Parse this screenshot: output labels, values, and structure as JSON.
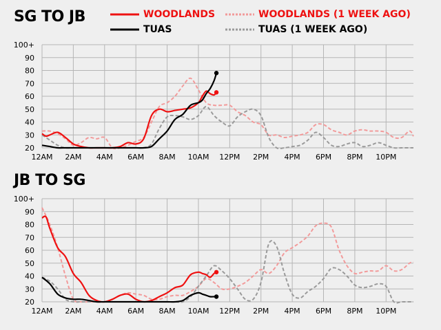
{
  "colors": {
    "woodlands": "#ee1111",
    "woodlands_week_ago": "#f29a9a",
    "tuas": "#000000",
    "tuas_week_ago": "#9a9a9a",
    "grid": "#b5b5b5",
    "background": "#efefef"
  },
  "legend": [
    {
      "label": "WOODLANDS",
      "style": "solid",
      "color": "#ee1111"
    },
    {
      "label": "WOODLANDS (1 WEEK AGO)",
      "style": "dashed",
      "color": "#f29a9a"
    },
    {
      "label": "TUAS",
      "style": "solid",
      "color": "#000000"
    },
    {
      "label": "TUAS (1 WEEK AGO)",
      "style": "dashed",
      "color": "#9a9a9a"
    }
  ],
  "chart_data": [
    {
      "type": "line",
      "title": "SG TO JB",
      "x_ticks": [
        "12AM",
        "2AM",
        "4AM",
        "6AM",
        "8AM",
        "10AM",
        "12PM",
        "2PM",
        "4PM",
        "6PM",
        "8PM",
        "10PM"
      ],
      "y_ticks": [
        "20",
        "30",
        "40",
        "50",
        "60",
        "70",
        "80",
        "90",
        "100+"
      ],
      "xlim": [
        0,
        23.75
      ],
      "ylim": [
        20,
        100
      ],
      "grid": true,
      "series": [
        {
          "name": "WOODLANDS (1 WEEK AGO)",
          "style": "dashed",
          "color": "#f29a9a",
          "x": [
            0,
            0.5,
            1,
            1.5,
            2,
            2.5,
            3,
            3.5,
            4,
            4.5,
            5,
            5.5,
            6,
            6.5,
            7,
            7.5,
            8,
            8.5,
            9,
            9.5,
            10,
            10.5,
            11,
            11.5,
            12,
            12.5,
            13,
            13.5,
            14,
            14.5,
            15,
            15.5,
            16,
            16.5,
            17,
            17.5,
            18,
            18.5,
            19,
            19.5,
            20,
            20.5,
            21,
            21.5,
            22,
            22.5,
            23,
            23.5,
            23.75
          ],
          "y": [
            33,
            33,
            31,
            27,
            22,
            24,
            28,
            27,
            28,
            20,
            20,
            22,
            25,
            28,
            40,
            52,
            55,
            60,
            68,
            74,
            65,
            55,
            53,
            53,
            53,
            48,
            45,
            40,
            38,
            30,
            30,
            28,
            29,
            30,
            32,
            38,
            38,
            34,
            32,
            30,
            33,
            34,
            33,
            33,
            32,
            28,
            28,
            33,
            29
          ]
        },
        {
          "name": "TUAS (1 WEEK AGO)",
          "style": "dashed",
          "color": "#9a9a9a",
          "x": [
            0,
            0.5,
            1,
            1.5,
            2,
            2.5,
            3,
            3.5,
            4,
            4.5,
            5,
            5.5,
            6,
            6.5,
            7,
            7.5,
            8,
            8.5,
            9,
            9.5,
            10,
            10.5,
            11,
            11.5,
            12,
            12.5,
            13,
            13.5,
            14,
            14.5,
            15,
            15.5,
            16,
            16.5,
            17,
            17.5,
            18,
            18.5,
            19,
            19.5,
            20,
            20.5,
            21,
            21.5,
            22,
            22.5,
            23,
            23.5,
            23.75
          ],
          "y": [
            30,
            26,
            22,
            20,
            20,
            20,
            20,
            20,
            20,
            20,
            20,
            20,
            20,
            20,
            23,
            35,
            44,
            45,
            44,
            42,
            45,
            52,
            45,
            40,
            37,
            44,
            48,
            50,
            45,
            28,
            20,
            20,
            21,
            22,
            26,
            32,
            28,
            22,
            21,
            23,
            24,
            21,
            22,
            24,
            22,
            20,
            20,
            20,
            20
          ]
        },
        {
          "name": "WOODLANDS",
          "style": "solid",
          "color": "#ee1111",
          "x": [
            0,
            0.25,
            0.5,
            1,
            1.5,
            2,
            2.5,
            3,
            3.5,
            4,
            4.5,
            5,
            5.5,
            6,
            6.5,
            7,
            7.5,
            8,
            8.5,
            9,
            9.5,
            10,
            10.25,
            10.5,
            10.75,
            11,
            11.15
          ],
          "y": [
            31,
            29,
            30,
            32,
            28,
            23,
            21,
            20,
            20,
            20,
            20,
            21,
            24,
            23,
            27,
            45,
            50,
            48,
            49,
            50,
            51,
            55,
            60,
            64,
            62,
            61,
            63
          ],
          "end_marker": true
        },
        {
          "name": "TUAS",
          "style": "solid",
          "color": "#000000",
          "x": [
            0,
            0.5,
            1,
            1.5,
            2,
            2.5,
            3,
            3.5,
            4,
            4.5,
            5,
            5.5,
            6,
            6.5,
            7,
            7.5,
            8,
            8.5,
            9,
            9.5,
            10,
            10.25,
            10.5,
            10.75,
            11,
            11.15
          ],
          "y": [
            22,
            21,
            20,
            20,
            20,
            20,
            20,
            20,
            20,
            20,
            20,
            20,
            20,
            20,
            21,
            27,
            33,
            42,
            46,
            53,
            55,
            57,
            62,
            66,
            72,
            78
          ],
          "end_marker": true
        }
      ]
    },
    {
      "type": "line",
      "title": "JB TO SG",
      "x_ticks": [
        "12AM",
        "2AM",
        "4AM",
        "6AM",
        "8AM",
        "10AM",
        "12PM",
        "2PM",
        "4PM",
        "6PM",
        "8PM",
        "10PM"
      ],
      "y_ticks": [
        "20",
        "30",
        "40",
        "50",
        "60",
        "70",
        "80",
        "90",
        "100+"
      ],
      "xlim": [
        0,
        23.75
      ],
      "ylim": [
        20,
        100
      ],
      "grid": true,
      "series": [
        {
          "name": "WOODLANDS (1 WEEK AGO)",
          "style": "dashed",
          "color": "#f29a9a",
          "x": [
            0,
            0.5,
            1,
            1.5,
            2,
            2.5,
            3,
            3.5,
            4,
            4.5,
            5,
            5.5,
            6,
            6.5,
            7,
            7.5,
            8,
            8.5,
            9,
            9.5,
            10,
            10.5,
            11,
            11.5,
            12,
            12.5,
            13,
            13.5,
            14,
            14.5,
            15,
            15.5,
            16,
            16.5,
            17,
            17.5,
            18,
            18.5,
            19,
            19.5,
            20,
            20.5,
            21,
            21.5,
            22,
            22.5,
            23,
            23.5,
            23.75
          ],
          "y": [
            93,
            80,
            62,
            40,
            22,
            20,
            20,
            20,
            20,
            22,
            25,
            27,
            26,
            25,
            22,
            22,
            24,
            25,
            25,
            28,
            32,
            38,
            35,
            30,
            30,
            32,
            35,
            40,
            45,
            42,
            48,
            58,
            62,
            66,
            71,
            79,
            81,
            78,
            60,
            48,
            42,
            43,
            44,
            44,
            48,
            44,
            45,
            50,
            51
          ]
        },
        {
          "name": "TUAS (1 WEEK AGO)",
          "style": "dashed",
          "color": "#9a9a9a",
          "x": [
            0,
            0.5,
            1,
            1.5,
            2,
            2.5,
            3,
            3.5,
            4,
            4.5,
            5,
            5.5,
            6,
            6.5,
            7,
            7.5,
            8,
            8.5,
            9,
            9.5,
            10,
            10.5,
            11,
            11.5,
            12,
            12.5,
            13,
            13.5,
            14,
            14.5,
            15,
            15.5,
            16,
            16.5,
            17,
            17.5,
            18,
            18.5,
            19,
            19.5,
            20,
            20.5,
            21,
            21.5,
            22,
            22.5,
            23,
            23.5,
            23.75
          ],
          "y": [
            39,
            36,
            30,
            22,
            20,
            20,
            20,
            20,
            20,
            20,
            20,
            20,
            20,
            20,
            20,
            20,
            20,
            20,
            20,
            24,
            32,
            40,
            48,
            44,
            38,
            30,
            22,
            22,
            35,
            65,
            63,
            42,
            26,
            23,
            28,
            32,
            38,
            46,
            45,
            40,
            33,
            31,
            32,
            34,
            32,
            20,
            20,
            20,
            20
          ]
        },
        {
          "name": "WOODLANDS",
          "style": "solid",
          "color": "#ee1111",
          "x": [
            0,
            0.25,
            0.5,
            1,
            1.5,
            2,
            2.5,
            3,
            3.5,
            4,
            4.5,
            5,
            5.5,
            6,
            6.5,
            7,
            7.5,
            8,
            8.5,
            9,
            9.5,
            10,
            10.25,
            10.5,
            10.75,
            11,
            11.15
          ],
          "y": [
            85,
            86,
            77,
            62,
            55,
            42,
            35,
            25,
            21,
            20,
            22,
            25,
            26,
            22,
            20,
            21,
            24,
            27,
            31,
            33,
            41,
            43,
            42,
            41,
            39,
            42,
            43
          ],
          "end_marker": true
        },
        {
          "name": "TUAS",
          "style": "solid",
          "color": "#000000",
          "x": [
            0,
            0.5,
            1,
            1.5,
            2,
            2.5,
            3,
            3.5,
            4,
            4.5,
            5,
            5.5,
            6,
            6.5,
            7,
            7.5,
            8,
            8.5,
            9,
            9.5,
            10,
            10.25,
            10.5,
            10.75,
            11,
            11.15
          ],
          "y": [
            39,
            34,
            26,
            23,
            22,
            22,
            21,
            20,
            20,
            20,
            20,
            20,
            20,
            20,
            20,
            20,
            20,
            20,
            21,
            25,
            27,
            26,
            25,
            24,
            24,
            24
          ],
          "end_marker": true
        }
      ]
    }
  ]
}
